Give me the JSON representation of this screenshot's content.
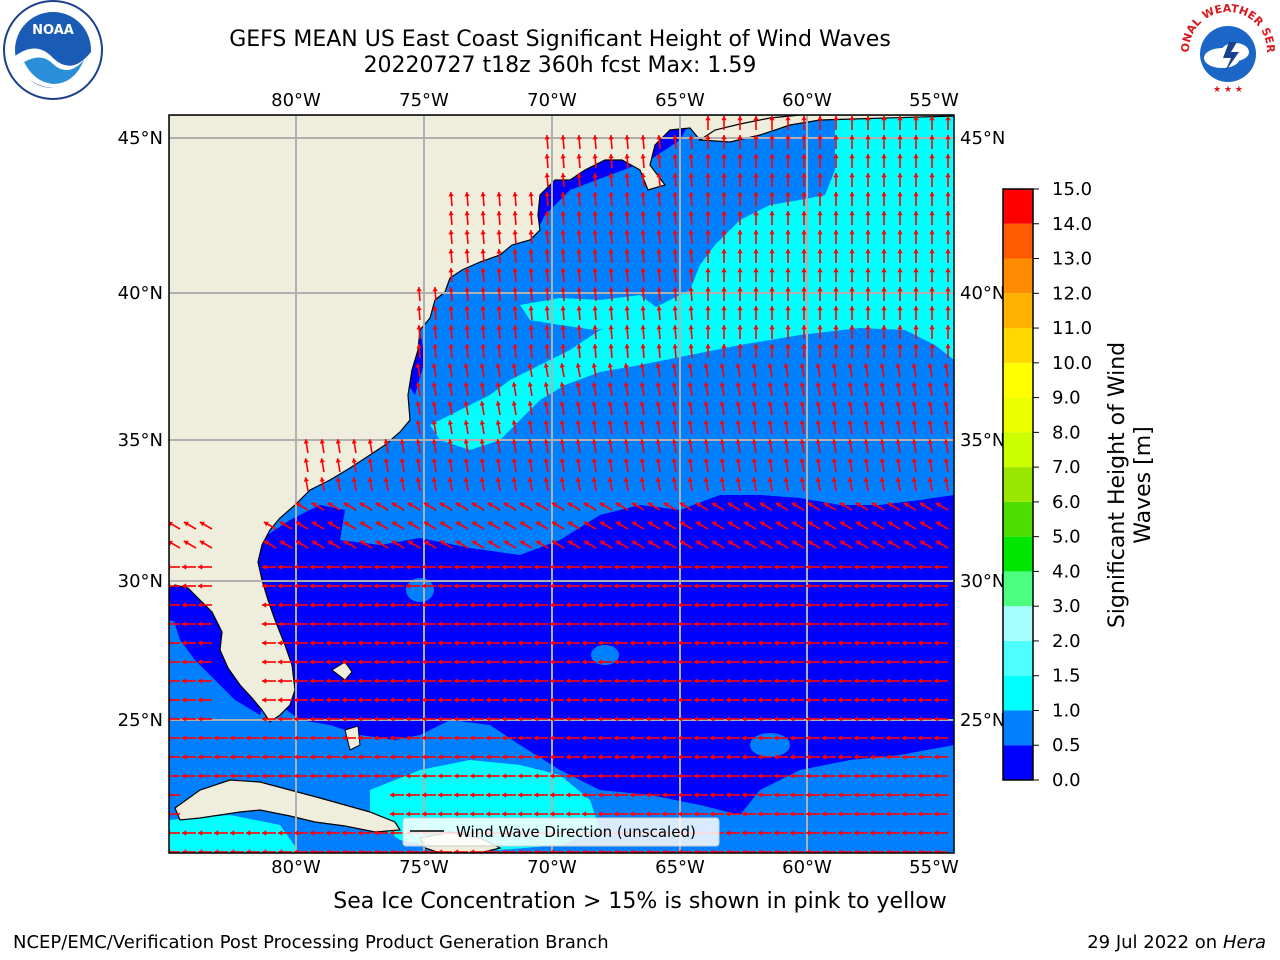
{
  "title": {
    "line1": "GEFS MEAN US East Coast Significant Height of Wind Waves",
    "line2": "20220727 t18z 360h fcst   Max: 1.59"
  },
  "map": {
    "lon_labels": [
      "80°W",
      "75°W",
      "70°W",
      "65°W",
      "60°W",
      "55°W"
    ],
    "lat_labels": [
      "45°N",
      "40°N",
      "35°N",
      "30°N",
      "25°N"
    ],
    "legend_label": "Wind Wave Direction (unscaled)",
    "arrow_color": "#ff0000",
    "land_color": "#efeddc",
    "level_colors": [
      "#0000ff",
      "#0080ff",
      "#00ffff",
      "#4dffff",
      "#a6ffff"
    ]
  },
  "colorbar": {
    "label_line1": "Significant Height of Wind",
    "label_line2": "Waves [m]",
    "ticks": [
      "0.0",
      "0.5",
      "1.0",
      "1.5",
      "2.0",
      "3.0",
      "4.0",
      "5.0",
      "6.0",
      "7.0",
      "8.0",
      "9.0",
      "10.0",
      "11.0",
      "12.0",
      "13.0",
      "14.0",
      "15.0"
    ],
    "colors": [
      "#0000ff",
      "#0080ff",
      "#00ffff",
      "#4dffff",
      "#a6ffff",
      "#4dff80",
      "#00e600",
      "#4ddc00",
      "#99e600",
      "#ccff00",
      "#eeff00",
      "#ffff00",
      "#ffd800",
      "#ffb300",
      "#ff8c00",
      "#ff5a00",
      "#ff0000"
    ]
  },
  "note": "Sea Ice Concentration > 15% is shown in pink to yellow",
  "footer": {
    "left": "NCEP/EMC/Verification Post Processing Product Generation Branch",
    "right_date": "29 Jul 2022 on",
    "right_host": "Hera"
  },
  "logos": {
    "noaa_text": "NOAA",
    "nws_text": "NATIONAL WEATHER SERVICE"
  }
}
